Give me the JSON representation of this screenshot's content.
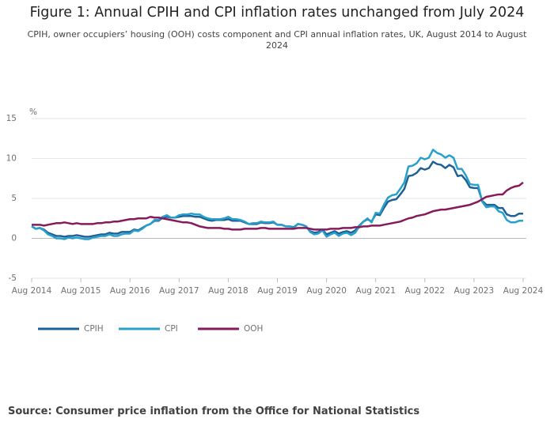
{
  "chart_data": {
    "type": "line",
    "title": "Figure 1: Annual CPIH and CPI inflation rates unchanged from July 2024",
    "subtitle": "CPIH, owner occupiers’ housing (OOH) costs component and CPI annual inflation rates, UK, August 2014 to August 2024",
    "y_label": "%",
    "source": "Source: Consumer price inflation from the Office for National Statistics",
    "categories": [
      "Aug 2014",
      null,
      null,
      null,
      null,
      null,
      null,
      null,
      null,
      null,
      null,
      null,
      "Aug 2015",
      null,
      null,
      null,
      null,
      null,
      null,
      null,
      null,
      null,
      null,
      null,
      "Aug 2016",
      null,
      null,
      null,
      null,
      null,
      null,
      null,
      null,
      null,
      null,
      null,
      "Aug 2017",
      null,
      null,
      null,
      null,
      null,
      null,
      null,
      null,
      null,
      null,
      null,
      "Aug 2018",
      null,
      null,
      null,
      null,
      null,
      null,
      null,
      null,
      null,
      null,
      null,
      "Aug 2019",
      null,
      null,
      null,
      null,
      null,
      null,
      null,
      null,
      null,
      null,
      null,
      "Aug 2020",
      null,
      null,
      null,
      null,
      null,
      null,
      null,
      null,
      null,
      null,
      null,
      "Aug 2021",
      null,
      null,
      null,
      null,
      null,
      null,
      null,
      null,
      null,
      null,
      null,
      "Aug 2022",
      null,
      null,
      null,
      null,
      null,
      null,
      null,
      null,
      null,
      null,
      null,
      "Aug 2023",
      null,
      null,
      null,
      null,
      null,
      null,
      null,
      null,
      null,
      null,
      null,
      "Aug 2024"
    ],
    "series": [
      {
        "name": "CPIH",
        "color": "#206095",
        "values": [
          1.5,
          1.2,
          1.3,
          1.1,
          0.7,
          0.5,
          0.3,
          0.3,
          0.2,
          0.3,
          0.3,
          0.4,
          0.3,
          0.2,
          0.2,
          0.3,
          0.4,
          0.5,
          0.5,
          0.7,
          0.6,
          0.6,
          0.8,
          0.8,
          0.8,
          1.1,
          1.0,
          1.3,
          1.6,
          1.8,
          2.2,
          2.2,
          2.6,
          2.7,
          2.6,
          2.6,
          2.7,
          2.8,
          2.8,
          2.8,
          2.7,
          2.7,
          2.5,
          2.3,
          2.2,
          2.3,
          2.3,
          2.3,
          2.4,
          2.2,
          2.2,
          2.2,
          2.0,
          1.8,
          1.8,
          1.8,
          2.0,
          1.9,
          1.9,
          2.0,
          1.7,
          1.7,
          1.5,
          1.5,
          1.4,
          1.8,
          1.7,
          1.5,
          0.9,
          0.7,
          0.8,
          1.1,
          0.5,
          0.7,
          0.9,
          0.6,
          0.8,
          0.9,
          0.7,
          1.0,
          1.6,
          2.1,
          2.4,
          2.1,
          3.0,
          2.9,
          3.8,
          4.6,
          4.8,
          4.9,
          5.5,
          6.2,
          7.8,
          7.9,
          8.2,
          8.8,
          8.6,
          8.8,
          9.6,
          9.3,
          9.2,
          8.8,
          9.2,
          8.9,
          7.8,
          7.9,
          7.3,
          6.4,
          6.3,
          6.3,
          4.7,
          4.2,
          4.2,
          4.2,
          3.8,
          3.8,
          3.0,
          2.8,
          2.8,
          3.1,
          3.1
        ]
      },
      {
        "name": "CPI",
        "color": "#27a0cc",
        "values": [
          1.5,
          1.2,
          1.3,
          1.0,
          0.5,
          0.3,
          0.0,
          0.0,
          -0.1,
          0.1,
          0.0,
          0.1,
          0.0,
          -0.1,
          -0.1,
          0.1,
          0.2,
          0.3,
          0.3,
          0.5,
          0.3,
          0.3,
          0.5,
          0.6,
          0.6,
          1.0,
          0.9,
          1.2,
          1.6,
          1.8,
          2.3,
          2.3,
          2.7,
          2.9,
          2.6,
          2.6,
          2.9,
          3.0,
          3.0,
          3.1,
          3.0,
          3.0,
          2.7,
          2.5,
          2.4,
          2.4,
          2.4,
          2.5,
          2.7,
          2.4,
          2.4,
          2.3,
          2.1,
          1.8,
          1.9,
          1.9,
          2.1,
          2.0,
          2.0,
          2.1,
          1.7,
          1.7,
          1.5,
          1.5,
          1.3,
          1.8,
          1.7,
          1.5,
          0.8,
          0.5,
          0.6,
          1.0,
          0.2,
          0.5,
          0.7,
          0.3,
          0.6,
          0.7,
          0.4,
          0.7,
          1.5,
          2.1,
          2.5,
          2.0,
          3.2,
          3.1,
          4.2,
          5.1,
          5.4,
          5.5,
          6.2,
          7.0,
          9.0,
          9.1,
          9.4,
          10.1,
          9.9,
          10.1,
          11.1,
          10.7,
          10.5,
          10.1,
          10.4,
          10.1,
          8.7,
          8.7,
          7.9,
          6.8,
          6.7,
          6.7,
          4.6,
          3.9,
          4.0,
          4.0,
          3.4,
          3.2,
          2.3,
          2.0,
          2.0,
          2.2,
          2.2
        ]
      },
      {
        "name": "OOH",
        "color": "#871a5b",
        "values": [
          1.7,
          1.7,
          1.7,
          1.6,
          1.7,
          1.8,
          1.9,
          1.9,
          2.0,
          1.9,
          1.8,
          1.9,
          1.8,
          1.8,
          1.8,
          1.8,
          1.9,
          1.9,
          2.0,
          2.0,
          2.1,
          2.1,
          2.2,
          2.3,
          2.4,
          2.4,
          2.5,
          2.5,
          2.5,
          2.7,
          2.6,
          2.6,
          2.5,
          2.4,
          2.3,
          2.2,
          2.1,
          2.0,
          2.0,
          1.9,
          1.7,
          1.5,
          1.4,
          1.3,
          1.3,
          1.3,
          1.3,
          1.2,
          1.2,
          1.1,
          1.1,
          1.1,
          1.2,
          1.2,
          1.2,
          1.2,
          1.3,
          1.3,
          1.2,
          1.2,
          1.2,
          1.2,
          1.2,
          1.2,
          1.2,
          1.3,
          1.3,
          1.3,
          1.2,
          1.1,
          1.1,
          1.1,
          1.1,
          1.2,
          1.2,
          1.2,
          1.3,
          1.3,
          1.3,
          1.4,
          1.4,
          1.5,
          1.5,
          1.6,
          1.6,
          1.6,
          1.7,
          1.8,
          1.9,
          2.0,
          2.1,
          2.3,
          2.5,
          2.6,
          2.8,
          2.9,
          3.0,
          3.2,
          3.4,
          3.5,
          3.6,
          3.6,
          3.7,
          3.8,
          3.9,
          4.0,
          4.1,
          4.2,
          4.4,
          4.6,
          4.9,
          5.2,
          5.3,
          5.4,
          5.5,
          5.5,
          6.0,
          6.3,
          6.5,
          6.6,
          7.0
        ]
      }
    ],
    "ylim": [
      -5,
      15
    ],
    "yticks": [
      -5,
      0,
      5,
      10,
      15
    ],
    "grid": true
  }
}
